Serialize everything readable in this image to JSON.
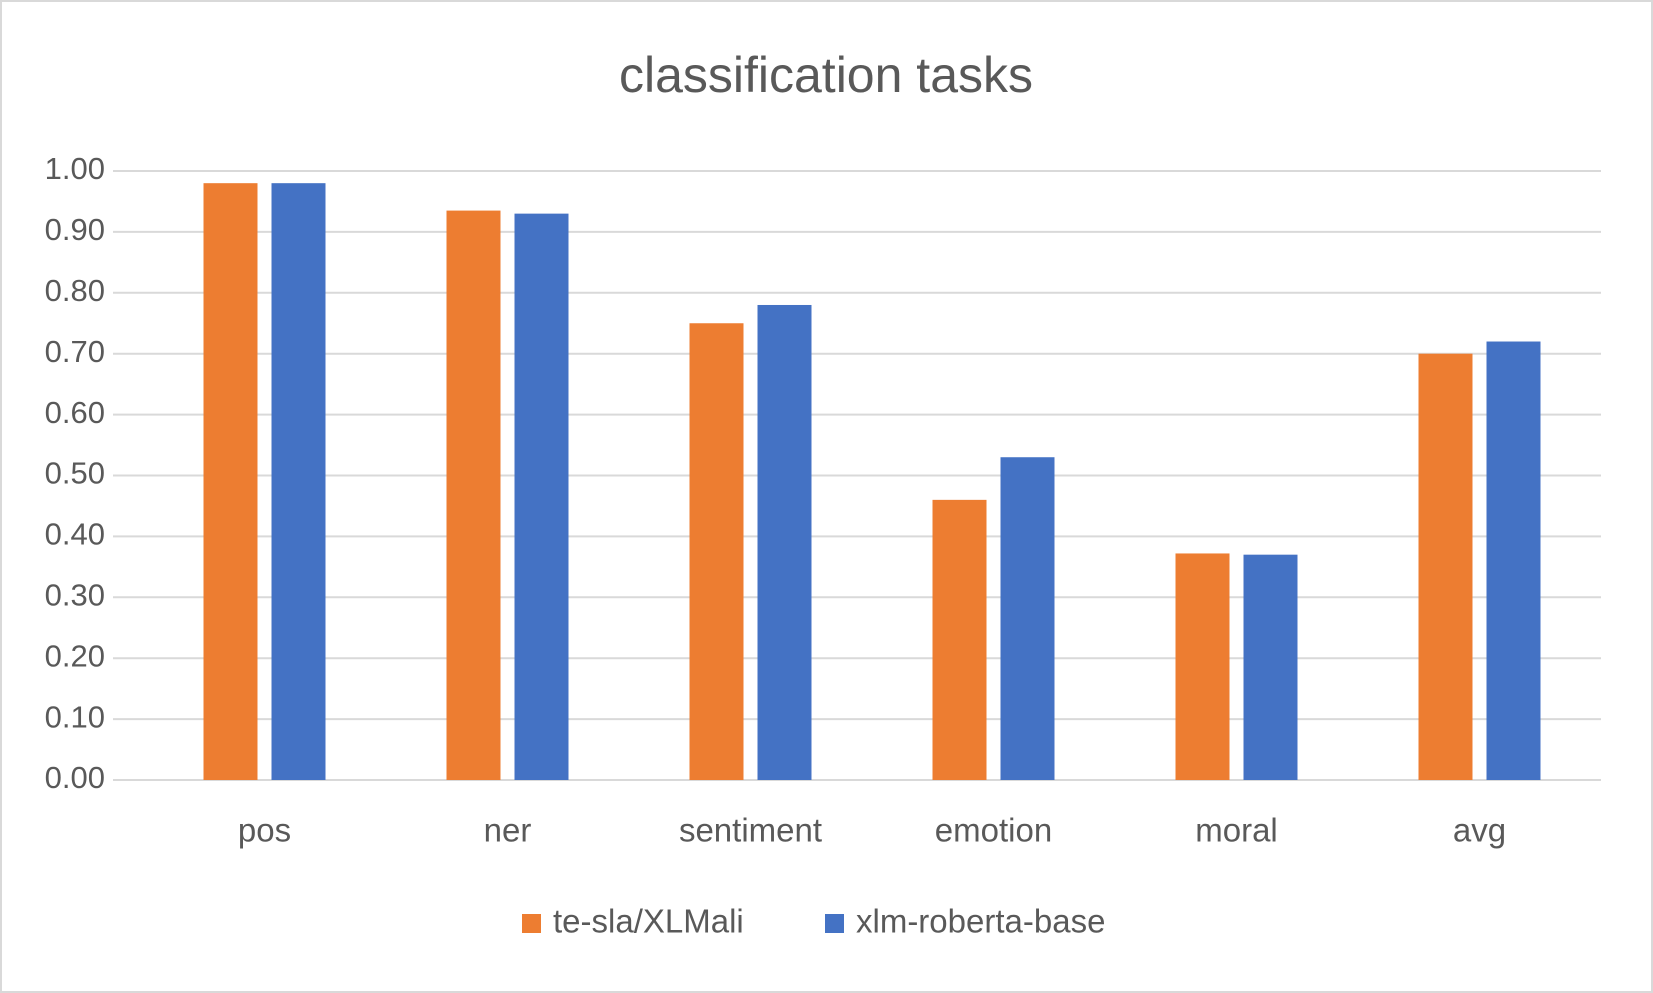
{
  "chart_data": {
    "type": "bar",
    "title": "classification tasks",
    "categories": [
      "pos",
      "ner",
      "sentiment",
      "emotion",
      "moral",
      "avg"
    ],
    "series": [
      {
        "name": "te-sla/XLMali",
        "color": "#ed7d31",
        "values": [
          0.98,
          0.935,
          0.75,
          0.46,
          0.372,
          0.7
        ]
      },
      {
        "name": "xlm-roberta-base",
        "color": "#4472c4",
        "values": [
          0.98,
          0.93,
          0.78,
          0.53,
          0.37,
          0.72
        ]
      }
    ],
    "ylim": [
      0,
      1
    ],
    "yticks": [
      {
        "value": 0,
        "label": "0.00"
      },
      {
        "value": 0.1,
        "label": "0.10"
      },
      {
        "value": 0.2,
        "label": "0.20"
      },
      {
        "value": 0.3,
        "label": "0.30"
      },
      {
        "value": 0.4,
        "label": "0.40"
      },
      {
        "value": 0.5,
        "label": "0.50"
      },
      {
        "value": 0.6,
        "label": "0.60"
      },
      {
        "value": 0.7,
        "label": "0.70"
      },
      {
        "value": 0.8,
        "label": "0.80"
      },
      {
        "value": 0.9,
        "label": "0.90"
      },
      {
        "value": 1,
        "label": "1.00"
      }
    ],
    "grid": true,
    "legend": "bottom"
  }
}
